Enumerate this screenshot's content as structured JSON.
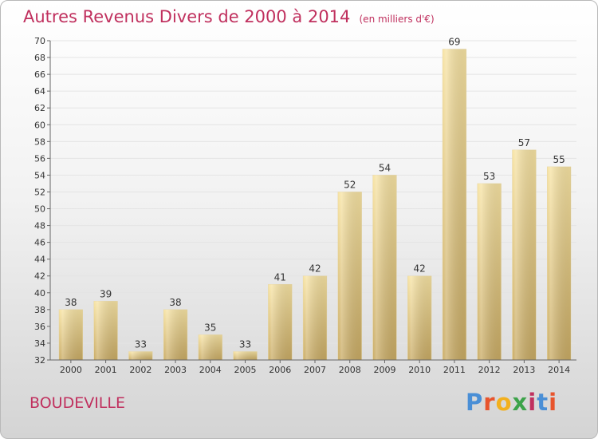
{
  "chart_data": {
    "type": "bar",
    "title": "Autres Revenus Divers de 2000 à 2014",
    "subtitle": "(en milliers d'€)",
    "categories": [
      "2000",
      "2001",
      "2002",
      "2003",
      "2004",
      "2005",
      "2006",
      "2007",
      "2008",
      "2009",
      "2010",
      "2011",
      "2012",
      "2013",
      "2014"
    ],
    "values": [
      38,
      39,
      33,
      38,
      35,
      33,
      41,
      42,
      52,
      54,
      42,
      69,
      53,
      57,
      55
    ],
    "ylim": [
      32,
      70
    ],
    "ytick_step": 2,
    "grid": true,
    "bar_color_top": "#f7e3a3",
    "bar_color_bottom": "#c9ab64"
  },
  "footer": {
    "town": "BOUDEVILLE",
    "logo_letters": [
      "P",
      "r",
      "o",
      "x",
      "i",
      "t",
      "i"
    ]
  }
}
